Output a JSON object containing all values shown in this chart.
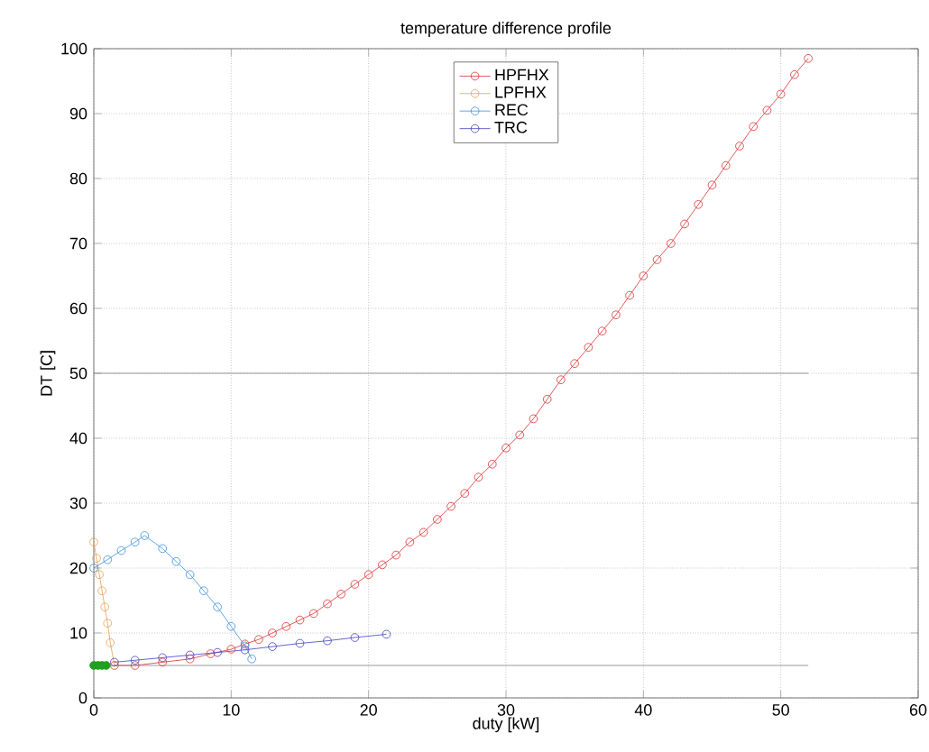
{
  "chart_data": {
    "type": "line",
    "title": "temperature difference profile",
    "xlabel": "duty [kW]",
    "ylabel": "DT [C]",
    "xlim": [
      0,
      60
    ],
    "ylim": [
      0,
      100
    ],
    "xticks": [
      0,
      10,
      20,
      30,
      40,
      50,
      60
    ],
    "yticks": [
      0,
      10,
      20,
      30,
      40,
      50,
      60,
      70,
      80,
      90,
      100
    ],
    "grid": true,
    "legend": "top",
    "marker": "circle",
    "line_style": "solid",
    "series": [
      {
        "name": "HPFHX",
        "color": "#e03030",
        "x": [
          1.5,
          3,
          5,
          7,
          8.5,
          10,
          11,
          12,
          13,
          14,
          15,
          16,
          17,
          18,
          19,
          20,
          21,
          22,
          23,
          24,
          25,
          26,
          27,
          28,
          29,
          30,
          31,
          32,
          33,
          34,
          35,
          36,
          37,
          38,
          39,
          40,
          41,
          42,
          43,
          44,
          45,
          46,
          47,
          48,
          49,
          50,
          51,
          52
        ],
        "values": [
          5,
          5,
          5.5,
          6,
          6.8,
          7.5,
          8.3,
          9,
          10,
          11,
          12,
          13,
          14.5,
          16,
          17.5,
          19,
          20.5,
          22,
          24,
          25.5,
          27.5,
          29.5,
          31.5,
          34,
          36,
          38.5,
          40.5,
          43,
          46,
          49,
          51.5,
          54,
          56.5,
          59,
          62,
          65,
          67.5,
          70,
          73,
          76,
          79,
          82,
          85,
          88,
          90.5,
          93,
          96,
          98.5
        ]
      },
      {
        "name": "LPFHX",
        "color": "#e8a050",
        "x": [
          0,
          0.2,
          0.4,
          0.6,
          0.8,
          1,
          1.2,
          1.5
        ],
        "values": [
          24,
          21.5,
          19,
          16.5,
          14,
          11.5,
          8.5,
          5
        ]
      },
      {
        "name": "REC",
        "color": "#3a8fdf",
        "x": [
          0,
          1,
          2,
          3,
          3.7,
          5,
          6,
          7,
          8,
          9,
          10,
          11,
          11.5
        ],
        "values": [
          20,
          21.3,
          22.7,
          24,
          25,
          23,
          21,
          19,
          16.5,
          14,
          11,
          8,
          6
        ]
      },
      {
        "name": "TRC",
        "color": "#4040c0",
        "x": [
          1.5,
          3,
          5,
          7,
          9,
          11,
          13,
          15,
          17,
          19,
          21.3
        ],
        "values": [
          5.5,
          5.8,
          6.2,
          6.6,
          7,
          7.4,
          7.9,
          8.4,
          8.8,
          9.3,
          9.8
        ]
      },
      {
        "type": "scatter",
        "color": "#20a020",
        "marker": "circle",
        "x": [
          0,
          0.3,
          0.6,
          0.9
        ],
        "values": [
          5,
          5,
          5,
          5
        ]
      },
      {
        "color": "#808080",
        "marker": "none",
        "x": [
          0,
          52
        ],
        "values": [
          50,
          50
        ]
      },
      {
        "color": "#808080",
        "marker": "none",
        "x": [
          0,
          52
        ],
        "values": [
          5,
          5
        ]
      }
    ]
  }
}
